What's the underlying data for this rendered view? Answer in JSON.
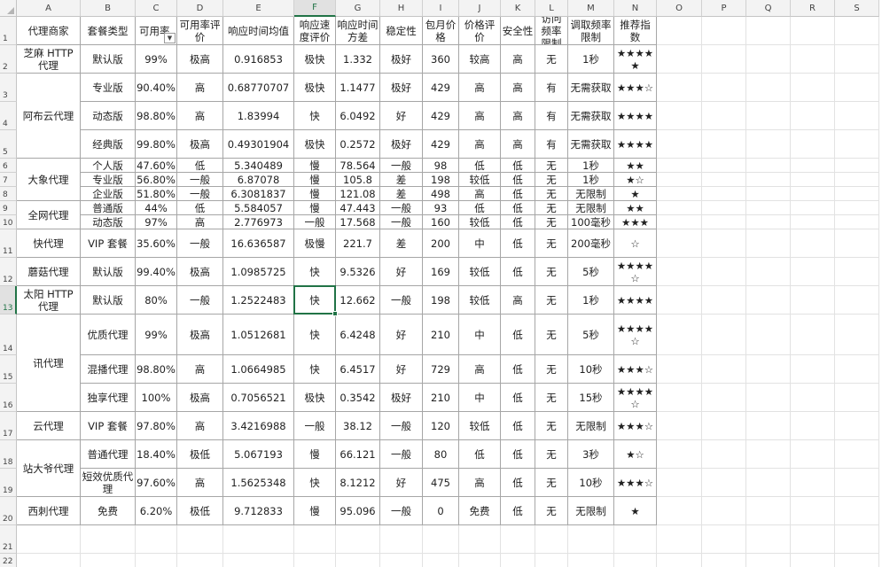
{
  "columns": [
    "A",
    "B",
    "C",
    "D",
    "E",
    "F",
    "G",
    "H",
    "I",
    "J",
    "K",
    "L",
    "M",
    "N",
    "O",
    "P",
    "Q",
    "R",
    "S"
  ],
  "selected_column": "F",
  "selected_row": 13,
  "header": [
    "代理商家",
    "套餐类型",
    "可用率",
    "可用率评价",
    "响应时间均值",
    "响应速度评价",
    "响应时间方差",
    "稳定性",
    "包月价格",
    "价格评价",
    "安全性",
    "访问频率限制",
    "调取频率限制",
    "推荐指数"
  ],
  "rows": [
    {
      "b": "默认版",
      "c": "99%",
      "d": "极高",
      "e": "0.916853",
      "f": "极快",
      "g": "1.332",
      "h": "极好",
      "i": "360",
      "j": "较高",
      "k": "高",
      "l": "无",
      "m": "1秒",
      "n": "★★★★★"
    },
    {
      "b": "专业版",
      "c": "90.40%",
      "d": "高",
      "e": "0.68770707",
      "f": "极快",
      "g": "1.1477",
      "h": "极好",
      "i": "429",
      "j": "高",
      "k": "高",
      "l": "有",
      "m": "无需获取",
      "n": "★★★☆"
    },
    {
      "b": "动态版",
      "c": "98.80%",
      "d": "高",
      "e": "1.83994",
      "f": "快",
      "g": "6.0492",
      "h": "好",
      "i": "429",
      "j": "高",
      "k": "高",
      "l": "有",
      "m": "无需获取",
      "n": "★★★★"
    },
    {
      "b": "经典版",
      "c": "99.80%",
      "d": "极高",
      "e": "0.49301904",
      "f": "极快",
      "g": "0.2572",
      "h": "极好",
      "i": "429",
      "j": "高",
      "k": "高",
      "l": "有",
      "m": "无需获取",
      "n": "★★★★"
    },
    {
      "b": "个人版",
      "c": "47.60%",
      "d": "低",
      "e": "5.340489",
      "f": "慢",
      "g": "78.564",
      "h": "一般",
      "i": "98",
      "j": "低",
      "k": "低",
      "l": "无",
      "m": "1秒",
      "n": "★★"
    },
    {
      "b": "专业版",
      "c": "56.80%",
      "d": "一般",
      "e": "6.87078",
      "f": "慢",
      "g": "105.8",
      "h": "差",
      "i": "198",
      "j": "较低",
      "k": "低",
      "l": "无",
      "m": "1秒",
      "n": "★☆"
    },
    {
      "b": "企业版",
      "c": "51.80%",
      "d": "一般",
      "e": "6.3081837",
      "f": "慢",
      "g": "121.08",
      "h": "差",
      "i": "498",
      "j": "高",
      "k": "低",
      "l": "无",
      "m": "无限制",
      "n": "★"
    },
    {
      "b": "普通版",
      "c": "44%",
      "d": "低",
      "e": "5.584057",
      "f": "慢",
      "g": "47.443",
      "h": "一般",
      "i": "93",
      "j": "低",
      "k": "低",
      "l": "无",
      "m": "无限制",
      "n": "★★"
    },
    {
      "b": "动态版",
      "c": "97%",
      "d": "高",
      "e": "2.776973",
      "f": "一般",
      "g": "17.568",
      "h": "一般",
      "i": "160",
      "j": "较低",
      "k": "低",
      "l": "无",
      "m": "100毫秒",
      "n": "★★★"
    },
    {
      "b": "VIP 套餐",
      "c": "35.60%",
      "d": "一般",
      "e": "16.636587",
      "f": "极慢",
      "g": "221.7",
      "h": "差",
      "i": "200",
      "j": "中",
      "k": "低",
      "l": "无",
      "m": "200毫秒",
      "n": "☆"
    },
    {
      "b": "默认版",
      "c": "99.40%",
      "d": "极高",
      "e": "1.0985725",
      "f": "快",
      "g": "9.5326",
      "h": "好",
      "i": "169",
      "j": "较低",
      "k": "低",
      "l": "无",
      "m": "5秒",
      "n": "★★★★☆"
    },
    {
      "b": "默认版",
      "c": "80%",
      "d": "一般",
      "e": "1.2522483",
      "f": "快",
      "g": "12.662",
      "h": "一般",
      "i": "198",
      "j": "较低",
      "k": "高",
      "l": "无",
      "m": "1秒",
      "n": "★★★★"
    },
    {
      "b": "优质代理",
      "c": "99%",
      "d": "极高",
      "e": "1.0512681",
      "f": "快",
      "g": "6.4248",
      "h": "好",
      "i": "210",
      "j": "中",
      "k": "低",
      "l": "无",
      "m": "5秒",
      "n": "★★★★☆"
    },
    {
      "b": "混播代理",
      "c": "98.80%",
      "d": "高",
      "e": "1.0664985",
      "f": "快",
      "g": "6.4517",
      "h": "好",
      "i": "729",
      "j": "高",
      "k": "低",
      "l": "无",
      "m": "10秒",
      "n": "★★★☆"
    },
    {
      "b": "独享代理",
      "c": "100%",
      "d": "极高",
      "e": "0.7056521",
      "f": "极快",
      "g": "0.3542",
      "h": "极好",
      "i": "210",
      "j": "中",
      "k": "低",
      "l": "无",
      "m": "15秒",
      "n": "★★★★☆"
    },
    {
      "b": "VIP 套餐",
      "c": "97.80%",
      "d": "高",
      "e": "3.4216988",
      "f": "一般",
      "g": "38.12",
      "h": "一般",
      "i": "120",
      "j": "较低",
      "k": "低",
      "l": "无",
      "m": "无限制",
      "n": "★★★☆"
    },
    {
      "b": "普通代理",
      "c": "18.40%",
      "d": "极低",
      "e": "5.067193",
      "f": "慢",
      "g": "66.121",
      "h": "一般",
      "i": "80",
      "j": "低",
      "k": "低",
      "l": "无",
      "m": "3秒",
      "n": "★☆"
    },
    {
      "b": "短效优质代理",
      "c": "97.60%",
      "d": "高",
      "e": "1.5625348",
      "f": "快",
      "g": "8.1212",
      "h": "好",
      "i": "475",
      "j": "高",
      "k": "低",
      "l": "无",
      "m": "10秒",
      "n": "★★★☆"
    },
    {
      "b": "免费",
      "c": "6.20%",
      "d": "极低",
      "e": "9.712833",
      "f": "慢",
      "g": "95.096",
      "h": "一般",
      "i": "0",
      "j": "免费",
      "k": "低",
      "l": "无",
      "m": "无限制",
      "n": "★"
    }
  ],
  "merged_vendors": [
    {
      "name": "芝麻 HTTP 代理",
      "rows": [
        2
      ]
    },
    {
      "name": "阿布云代理",
      "rows": [
        3,
        4,
        5
      ]
    },
    {
      "name": "大象代理",
      "rows": [
        6,
        7,
        8
      ]
    },
    {
      "name": "全网代理",
      "rows": [
        9,
        10
      ]
    },
    {
      "name": "快代理",
      "rows": [
        11
      ]
    },
    {
      "name": "蘑菇代理",
      "rows": [
        12
      ]
    },
    {
      "name": "太阳 HTTP 代理",
      "rows": [
        13
      ]
    },
    {
      "name": "讯代理",
      "rows": [
        14,
        15,
        16
      ]
    },
    {
      "name": "云代理",
      "rows": [
        17
      ]
    },
    {
      "name": "站大爷代理",
      "rows": [
        18,
        19
      ]
    },
    {
      "name": "西刺代理",
      "rows": [
        20
      ]
    }
  ],
  "extra_rows": [
    21,
    22,
    23
  ]
}
